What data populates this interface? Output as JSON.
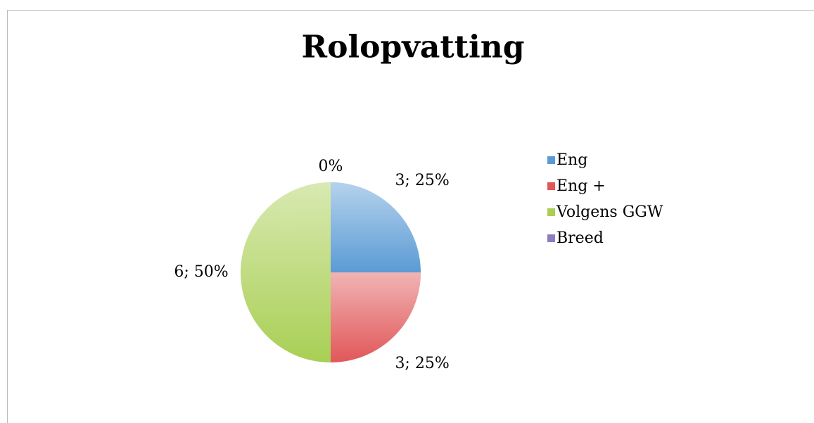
{
  "chart_data": {
    "type": "pie",
    "title": "Rolopvatting",
    "categories": [
      "Eng",
      "Eng +",
      "Volgens GGW",
      "Breed"
    ],
    "values": [
      3,
      3,
      6,
      0
    ],
    "value_labels": [
      "3; 25%",
      "3;  25%",
      "6;  50%",
      "0%"
    ],
    "colors": [
      "#5b9bd5",
      "#e15759",
      "#a9cf54",
      "#8e7cc3"
    ],
    "legend": "right"
  }
}
